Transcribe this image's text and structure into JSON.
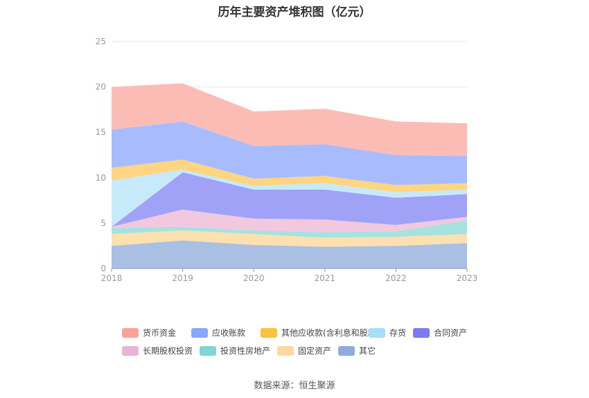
{
  "title": "历年主要资产堆积图（亿元）",
  "source": "数据来源：恒生聚源",
  "chart_data": {
    "type": "area",
    "stacked": true,
    "title": "历年主要资产堆积图（亿元）",
    "x": [
      "2018",
      "2019",
      "2020",
      "2021",
      "2022",
      "2023"
    ],
    "ylim": [
      0,
      25
    ],
    "yticks": [
      0,
      5,
      10,
      15,
      20,
      25
    ],
    "grid": true,
    "legend_position": "bottom",
    "series": [
      {
        "name": "其它",
        "color": "#a9bfe3",
        "values": [
          2.5,
          3.1,
          2.6,
          2.4,
          2.5,
          2.8
        ]
      },
      {
        "name": "固定资产",
        "color": "#fde0b0",
        "values": [
          1.3,
          1.1,
          1.2,
          1.0,
          1.0,
          1.0
        ]
      },
      {
        "name": "投资性房地产",
        "color": "#a6e2e0",
        "values": [
          0.7,
          0.4,
          0.4,
          0.6,
          0.6,
          1.5
        ]
      },
      {
        "name": "长期股权投资",
        "color": "#f1c8dd",
        "values": [
          0.1,
          1.9,
          1.3,
          1.4,
          0.7,
          0.4
        ]
      },
      {
        "name": "合同资产",
        "color": "#a0a2f8",
        "values": [
          0.0,
          4.1,
          3.2,
          3.3,
          3.0,
          2.5
        ]
      },
      {
        "name": "存货",
        "color": "#c6eafa",
        "values": [
          5.1,
          0.3,
          0.4,
          0.7,
          0.6,
          0.5
        ]
      },
      {
        "name": "其他应收款(含利息和股利)",
        "color": "#fed580",
        "values": [
          1.4,
          1.1,
          0.8,
          0.8,
          0.8,
          0.7
        ]
      },
      {
        "name": "应收账款",
        "color": "#a8bcfd",
        "values": [
          4.2,
          4.2,
          3.6,
          3.5,
          3.3,
          3.0
        ]
      },
      {
        "name": "货币资金",
        "color": "#fcbcb6",
        "values": [
          4.7,
          4.2,
          3.8,
          3.9,
          3.7,
          3.6
        ]
      }
    ]
  },
  "legend": [
    {
      "name": "货币资金",
      "color": "#f8a39a"
    },
    {
      "name": "应收账款",
      "color": "#89a7fb"
    },
    {
      "name": "其他应收款(含利息和股利)",
      "color": "#fbc23f"
    },
    {
      "name": "存货",
      "color": "#a8def9"
    },
    {
      "name": "合同资产",
      "color": "#7b7cf0"
    },
    {
      "name": "长期股权投资",
      "color": "#e8b5d6"
    },
    {
      "name": "投资性房地产",
      "color": "#7fd6d3"
    },
    {
      "name": "固定资产",
      "color": "#fcd9a2"
    },
    {
      "name": "其它",
      "color": "#8fabdb"
    }
  ]
}
